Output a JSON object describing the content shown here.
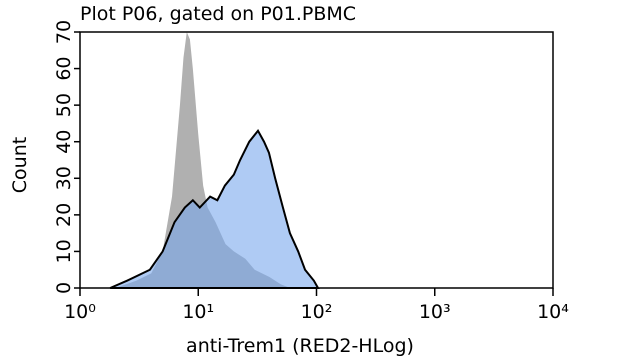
{
  "chart_data": {
    "type": "histogram-overlay",
    "title": "Plot P06, gated on P01.PBMC",
    "x_label": "anti-Trem1 (RED2-HLog)",
    "y_label": "Count",
    "x_log": true,
    "xlim": [
      1,
      10000
    ],
    "ylim": [
      0,
      70
    ],
    "xticks": [
      {
        "value": 1,
        "label": "10⁰"
      },
      {
        "value": 10,
        "label": "10¹"
      },
      {
        "value": 100,
        "label": "10²"
      },
      {
        "value": 1000,
        "label": "10³"
      },
      {
        "value": 10000,
        "label": "10⁴"
      }
    ],
    "yticks": [
      0,
      10,
      20,
      30,
      40,
      50,
      60,
      70
    ],
    "series": [
      {
        "color": "#b0b0b0",
        "x": [
          2,
          3,
          4,
          5,
          6,
          7,
          7.5,
          8,
          8.5,
          9,
          10,
          11,
          12,
          14,
          17,
          20,
          25,
          30,
          40,
          50,
          60
        ],
        "values": [
          0,
          2,
          4,
          10,
          25,
          50,
          63,
          70,
          68,
          60,
          42,
          28,
          22,
          18,
          12,
          10,
          8,
          5,
          3,
          1,
          0
        ]
      },
      {
        "color": "#7aa8ec",
        "x": [
          1.8,
          2.5,
          3.9,
          5,
          6.3,
          7.7,
          9,
          10.3,
          12.6,
          14.5,
          16.8,
          20,
          22.6,
          27,
          32,
          36,
          39.6,
          44.7,
          52,
          59.6,
          70,
          80,
          95,
          103
        ],
        "values": [
          0,
          2,
          5,
          10,
          18,
          22,
          24,
          22,
          25,
          24,
          28,
          31,
          35,
          40,
          43,
          40,
          37,
          30,
          22,
          15,
          10,
          5,
          2,
          0
        ]
      }
    ]
  }
}
